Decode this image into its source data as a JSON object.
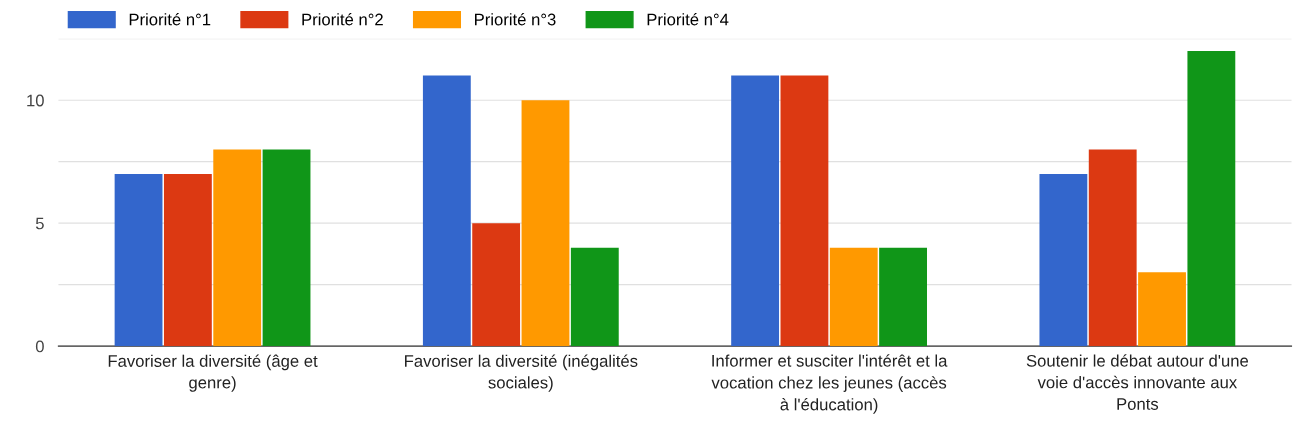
{
  "chart_data": {
    "type": "bar",
    "categories": [
      "Favoriser la diversité (âge et genre)",
      "Favoriser la diversité (inégalités sociales)",
      "Informer et susciter l'intérêt et la vocation chez les jeunes (accès à l'éducation)",
      "Soutenir le débat autour d'une voie d'accès innovante aux Ponts"
    ],
    "series": [
      {
        "name": "Priorité n°1",
        "color": "#3366cc",
        "values": [
          7,
          11,
          11,
          7
        ]
      },
      {
        "name": "Priorité n°2",
        "color": "#dc3912",
        "values": [
          7,
          5,
          11,
          8
        ]
      },
      {
        "name": "Priorité n°3",
        "color": "#ff9900",
        "values": [
          8,
          10,
          4,
          3
        ]
      },
      {
        "name": "Priorité n°4",
        "color": "#109618",
        "values": [
          8,
          4,
          4,
          12
        ]
      }
    ],
    "ylim": [
      0,
      12.5
    ],
    "yticks": [
      0,
      {
        "value": 2.5,
        "label": null
      },
      5,
      {
        "value": 7.5,
        "label": null
      },
      10,
      {
        "value": 12.5,
        "label": null
      }
    ],
    "grid": "y",
    "legend": "top left"
  }
}
